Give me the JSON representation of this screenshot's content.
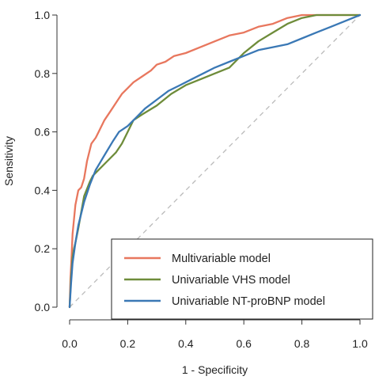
{
  "chart_data": {
    "type": "line",
    "title": "",
    "xlabel": "1 - Specificity",
    "ylabel": "Sensitivity",
    "xlim": [
      0,
      1
    ],
    "ylim": [
      0,
      1
    ],
    "xticks": [
      "0.0",
      "0.2",
      "0.4",
      "0.6",
      "0.8",
      "1.0"
    ],
    "yticks": [
      "0.0",
      "0.2",
      "0.4",
      "0.6",
      "0.8",
      "1.0"
    ],
    "grid": false,
    "legend_position": "bottom-right",
    "reference_line": {
      "style": "dashed",
      "color": "#bbbbbb",
      "from": [
        0,
        0
      ],
      "to": [
        1,
        1
      ]
    },
    "series": [
      {
        "name": "Multivariable model",
        "color": "#e8775e",
        "points": [
          [
            0,
            0
          ],
          [
            0.003,
            0.1
          ],
          [
            0.007,
            0.18
          ],
          [
            0.01,
            0.25
          ],
          [
            0.015,
            0.3
          ],
          [
            0.02,
            0.35
          ],
          [
            0.03,
            0.4
          ],
          [
            0.04,
            0.41
          ],
          [
            0.05,
            0.44
          ],
          [
            0.06,
            0.5
          ],
          [
            0.075,
            0.56
          ],
          [
            0.09,
            0.58
          ],
          [
            0.1,
            0.6
          ],
          [
            0.12,
            0.64
          ],
          [
            0.14,
            0.67
          ],
          [
            0.16,
            0.7
          ],
          [
            0.18,
            0.73
          ],
          [
            0.2,
            0.75
          ],
          [
            0.22,
            0.77
          ],
          [
            0.25,
            0.79
          ],
          [
            0.28,
            0.81
          ],
          [
            0.3,
            0.83
          ],
          [
            0.33,
            0.84
          ],
          [
            0.36,
            0.86
          ],
          [
            0.4,
            0.87
          ],
          [
            0.45,
            0.89
          ],
          [
            0.5,
            0.91
          ],
          [
            0.55,
            0.93
          ],
          [
            0.6,
            0.94
          ],
          [
            0.65,
            0.96
          ],
          [
            0.7,
            0.97
          ],
          [
            0.75,
            0.99
          ],
          [
            0.8,
            1.0
          ],
          [
            1.0,
            1.0
          ]
        ]
      },
      {
        "name": "Univariable VHS model",
        "color": "#6e8c3a",
        "points": [
          [
            0,
            0
          ],
          [
            0.005,
            0.1
          ],
          [
            0.01,
            0.17
          ],
          [
            0.015,
            0.2
          ],
          [
            0.02,
            0.22
          ],
          [
            0.03,
            0.27
          ],
          [
            0.05,
            0.38
          ],
          [
            0.07,
            0.43
          ],
          [
            0.08,
            0.45
          ],
          [
            0.1,
            0.47
          ],
          [
            0.13,
            0.5
          ],
          [
            0.16,
            0.53
          ],
          [
            0.18,
            0.56
          ],
          [
            0.2,
            0.6
          ],
          [
            0.22,
            0.64
          ],
          [
            0.25,
            0.66
          ],
          [
            0.3,
            0.69
          ],
          [
            0.35,
            0.73
          ],
          [
            0.4,
            0.76
          ],
          [
            0.45,
            0.78
          ],
          [
            0.5,
            0.8
          ],
          [
            0.55,
            0.82
          ],
          [
            0.6,
            0.87
          ],
          [
            0.65,
            0.91
          ],
          [
            0.7,
            0.94
          ],
          [
            0.75,
            0.97
          ],
          [
            0.8,
            0.99
          ],
          [
            0.85,
            1.0
          ],
          [
            1.0,
            1.0
          ]
        ]
      },
      {
        "name": "Univariable NT-proBNP model",
        "color": "#3a78b5",
        "points": [
          [
            0,
            0
          ],
          [
            0.005,
            0.08
          ],
          [
            0.01,
            0.15
          ],
          [
            0.02,
            0.22
          ],
          [
            0.03,
            0.28
          ],
          [
            0.05,
            0.36
          ],
          [
            0.07,
            0.42
          ],
          [
            0.09,
            0.47
          ],
          [
            0.12,
            0.52
          ],
          [
            0.15,
            0.57
          ],
          [
            0.17,
            0.6
          ],
          [
            0.2,
            0.62
          ],
          [
            0.23,
            0.65
          ],
          [
            0.26,
            0.68
          ],
          [
            0.3,
            0.71
          ],
          [
            0.34,
            0.74
          ],
          [
            0.38,
            0.76
          ],
          [
            0.42,
            0.78
          ],
          [
            0.46,
            0.8
          ],
          [
            0.5,
            0.82
          ],
          [
            0.55,
            0.84
          ],
          [
            0.6,
            0.86
          ],
          [
            0.65,
            0.88
          ],
          [
            0.7,
            0.89
          ],
          [
            0.75,
            0.9
          ],
          [
            0.8,
            0.92
          ],
          [
            0.85,
            0.94
          ],
          [
            0.9,
            0.96
          ],
          [
            0.95,
            0.98
          ],
          [
            1.0,
            1.0
          ]
        ]
      }
    ]
  }
}
